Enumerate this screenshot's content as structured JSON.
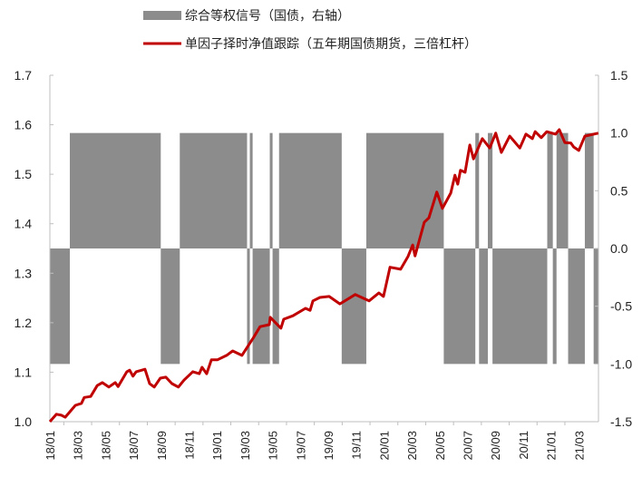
{
  "chart_data": {
    "type": "line+area",
    "title": "",
    "legend": {
      "placement": "top",
      "entries": [
        "综合等权信号（国债，右轴）",
        "单因子择时净值跟踪（五年期国债期货，三倍杠杆）"
      ]
    },
    "x_tick_labels": [
      "18/01",
      "18/03",
      "18/05",
      "18/07",
      "18/09",
      "18/11",
      "19/01",
      "19/03",
      "19/05",
      "19/07",
      "19/09",
      "19/11",
      "20/01",
      "20/03",
      "20/05",
      "20/07",
      "20/09",
      "20/11",
      "21/01",
      "21/03"
    ],
    "left_axis": {
      "range": [
        1.0,
        1.7
      ],
      "ticks": [
        "1.0",
        "1.1",
        "1.2",
        "1.3",
        "1.4",
        "1.5",
        "1.6",
        "1.7"
      ]
    },
    "right_axis": {
      "range": [
        -1.5,
        1.5
      ],
      "ticks": [
        "-1.5",
        "-1.0",
        "-0.5",
        "0.0",
        "0.5",
        "1.0",
        "1.5"
      ]
    },
    "grid": false,
    "colors": {
      "signal": "#8c8c8c",
      "nav": "#c00000",
      "axis": "#bfbfbf"
    },
    "series": [
      {
        "name": "综合等权信号（国债，右轴）",
        "axis": "right",
        "kind": "step-area",
        "end_date": "2021-04-13",
        "points": [
          [
            "2018-01-01",
            -1
          ],
          [
            "2018-02-14",
            1
          ],
          [
            "2018-08-30",
            -1
          ],
          [
            "2018-10-11",
            1
          ],
          [
            "2019-03-06",
            -1
          ],
          [
            "2019-03-12",
            1
          ],
          [
            "2019-03-18",
            -1
          ],
          [
            "2019-04-25",
            1
          ],
          [
            "2019-05-01",
            -1
          ],
          [
            "2019-05-15",
            1
          ],
          [
            "2019-09-30",
            -1
          ],
          [
            "2019-11-23",
            1
          ],
          [
            "2020-05-10",
            -1
          ],
          [
            "2020-07-18",
            1
          ],
          [
            "2020-07-26",
            -1
          ],
          [
            "2020-08-15",
            1
          ],
          [
            "2020-08-25",
            -1
          ],
          [
            "2020-12-23",
            1
          ],
          [
            "2021-01-05",
            -1
          ],
          [
            "2021-01-13",
            1
          ],
          [
            "2021-02-08",
            -1
          ],
          [
            "2021-03-14",
            1
          ],
          [
            "2021-04-03",
            -1
          ]
        ]
      },
      {
        "name": "单因子择时净值跟踪（五年期国债期货，三倍杠杆）",
        "axis": "left",
        "kind": "line",
        "points": [
          [
            "2018-01-01",
            1.0
          ],
          [
            "2018-01-15",
            1.015
          ],
          [
            "2018-01-26",
            1.013
          ],
          [
            "2018-02-04",
            1.009
          ],
          [
            "2018-02-26",
            1.033
          ],
          [
            "2018-03-09",
            1.037
          ],
          [
            "2018-03-15",
            1.049
          ],
          [
            "2018-03-29",
            1.051
          ],
          [
            "2018-04-13",
            1.073
          ],
          [
            "2018-04-24",
            1.079
          ],
          [
            "2018-05-08",
            1.07
          ],
          [
            "2018-05-22",
            1.079
          ],
          [
            "2018-05-28",
            1.071
          ],
          [
            "2018-06-17",
            1.101
          ],
          [
            "2018-06-23",
            1.104
          ],
          [
            "2018-06-30",
            1.092
          ],
          [
            "2018-07-07",
            1.101
          ],
          [
            "2018-07-26",
            1.106
          ],
          [
            "2018-08-06",
            1.077
          ],
          [
            "2018-08-16",
            1.07
          ],
          [
            "2018-08-29",
            1.088
          ],
          [
            "2018-09-11",
            1.09
          ],
          [
            "2018-09-24",
            1.077
          ],
          [
            "2018-10-08",
            1.07
          ],
          [
            "2018-10-20",
            1.084
          ],
          [
            "2018-11-09",
            1.101
          ],
          [
            "2018-11-23",
            1.097
          ],
          [
            "2018-11-29",
            1.11
          ],
          [
            "2018-12-09",
            1.097
          ],
          [
            "2018-12-19",
            1.125
          ],
          [
            "2019-01-02",
            1.125
          ],
          [
            "2019-01-22",
            1.134
          ],
          [
            "2019-02-05",
            1.143
          ],
          [
            "2019-02-25",
            1.134
          ],
          [
            "2019-03-20",
            1.17
          ],
          [
            "2019-04-04",
            1.192
          ],
          [
            "2019-04-24",
            1.196
          ],
          [
            "2019-04-26",
            1.211
          ],
          [
            "2019-05-19",
            1.189
          ],
          [
            "2019-05-25",
            1.207
          ],
          [
            "2019-06-15",
            1.214
          ],
          [
            "2019-07-12",
            1.229
          ],
          [
            "2019-07-22",
            1.225
          ],
          [
            "2019-07-28",
            1.244
          ],
          [
            "2019-08-13",
            1.251
          ],
          [
            "2019-09-03",
            1.253
          ],
          [
            "2019-09-26",
            1.238
          ],
          [
            "2019-10-29",
            1.257
          ],
          [
            "2019-11-29",
            1.244
          ],
          [
            "2019-12-20",
            1.26
          ],
          [
            "2019-12-30",
            1.253
          ],
          [
            "2020-01-14",
            1.312
          ],
          [
            "2020-02-07",
            1.308
          ],
          [
            "2020-02-23",
            1.334
          ],
          [
            "2020-03-03",
            1.357
          ],
          [
            "2020-03-08",
            1.335
          ],
          [
            "2020-03-28",
            1.403
          ],
          [
            "2020-04-08",
            1.412
          ],
          [
            "2020-04-25",
            1.464
          ],
          [
            "2020-05-07",
            1.431
          ],
          [
            "2020-05-25",
            1.462
          ],
          [
            "2020-06-04",
            1.498
          ],
          [
            "2020-06-10",
            1.48
          ],
          [
            "2020-06-16",
            1.508
          ],
          [
            "2020-06-26",
            1.504
          ],
          [
            "2020-07-06",
            1.559
          ],
          [
            "2020-07-14",
            1.531
          ],
          [
            "2020-08-03",
            1.572
          ],
          [
            "2020-08-19",
            1.553
          ],
          [
            "2020-09-02",
            1.583
          ],
          [
            "2020-09-14",
            1.544
          ],
          [
            "2020-10-02",
            1.577
          ],
          [
            "2020-10-24",
            1.553
          ],
          [
            "2020-11-07",
            1.581
          ],
          [
            "2020-11-21",
            1.572
          ],
          [
            "2020-11-27",
            1.586
          ],
          [
            "2020-12-10",
            1.574
          ],
          [
            "2020-12-22",
            1.586
          ],
          [
            "2021-01-11",
            1.581
          ],
          [
            "2021-01-19",
            1.59
          ],
          [
            "2021-02-01",
            1.564
          ],
          [
            "2021-02-14",
            1.563
          ],
          [
            "2021-02-20",
            1.555
          ],
          [
            "2021-03-01",
            1.548
          ],
          [
            "2021-03-14",
            1.577
          ],
          [
            "2021-04-13",
            1.583
          ]
        ]
      }
    ]
  }
}
